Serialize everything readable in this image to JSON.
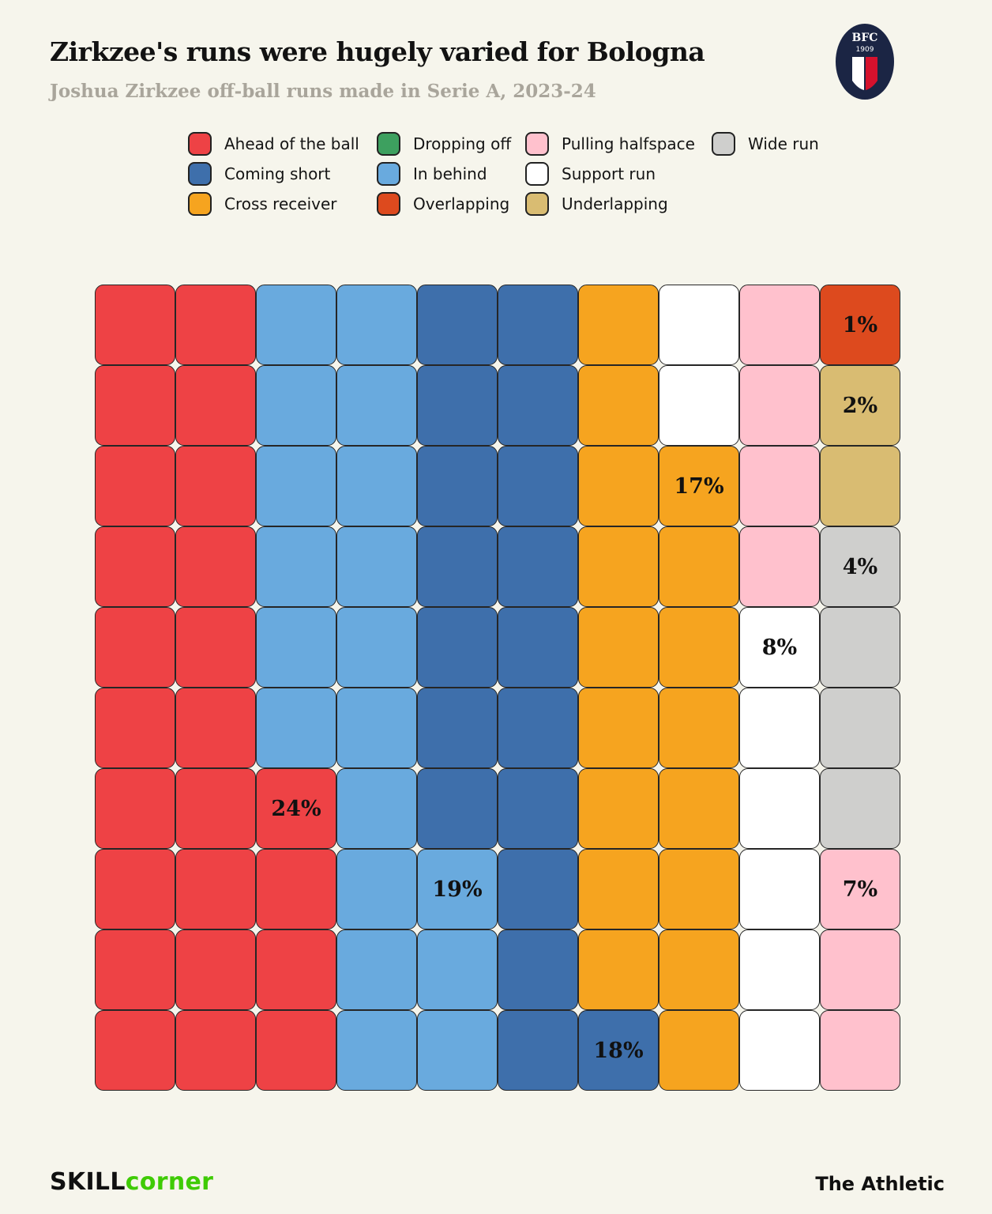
{
  "header": {
    "title": "Zirkzee's runs were hugely varied for Bologna",
    "subtitle": "Joshua Zirkzee off-ball runs made in Serie A, 2023-24"
  },
  "club_logo": {
    "abbr": "BFC",
    "year": "1909"
  },
  "legend": [
    {
      "key": "ahead",
      "label": "Ahead of the ball",
      "color": "#ee4245"
    },
    {
      "key": "coming_short",
      "label": "Coming short",
      "color": "#3e6fab"
    },
    {
      "key": "cross_receiver",
      "label": "Cross receiver",
      "color": "#f6a41f"
    },
    {
      "key": "dropping_off",
      "label": "Dropping off",
      "color": "#3da05f"
    },
    {
      "key": "in_behind",
      "label": "In behind",
      "color": "#69aade"
    },
    {
      "key": "overlapping",
      "label": "Overlapping",
      "color": "#dd4a1e"
    },
    {
      "key": "pulling_halfspace",
      "label": "Pulling halfspace",
      "color": "#ffc1cd"
    },
    {
      "key": "support_run",
      "label": "Support run",
      "color": "#ffffff"
    },
    {
      "key": "underlapping",
      "label": "Underlapping",
      "color": "#d9bc72"
    },
    {
      "key": "wide_run",
      "label": "Wide run",
      "color": "#cfcfcd"
    }
  ],
  "chart_data": {
    "type": "waffle",
    "title": "Zirkzee's runs were hugely varied for Bologna",
    "subtitle": "Joshua Zirkzee off-ball runs made in Serie A, 2023-24",
    "unit": "percent of off-ball runs",
    "grid_rows": 10,
    "grid_cols": 10,
    "values": [
      {
        "category": "Ahead of the ball",
        "percent": 24
      },
      {
        "category": "In behind",
        "percent": 19
      },
      {
        "category": "Coming short",
        "percent": 18
      },
      {
        "category": "Cross receiver",
        "percent": 17
      },
      {
        "category": "Support run",
        "percent": 8
      },
      {
        "category": "Pulling halfspace",
        "percent": 7
      },
      {
        "category": "Wide run",
        "percent": 4
      },
      {
        "category": "Underlapping",
        "percent": 2
      },
      {
        "category": "Overlapping",
        "percent": 1
      },
      {
        "category": "Dropping off",
        "percent": 0
      }
    ],
    "grid": [
      [
        "ahead",
        "ahead",
        "in_behind",
        "in_behind",
        "coming_short",
        "coming_short",
        "cross_receiver",
        "support_run",
        "pulling_halfspace",
        "overlapping"
      ],
      [
        "ahead",
        "ahead",
        "in_behind",
        "in_behind",
        "coming_short",
        "coming_short",
        "cross_receiver",
        "support_run",
        "pulling_halfspace",
        "underlapping"
      ],
      [
        "ahead",
        "ahead",
        "in_behind",
        "in_behind",
        "coming_short",
        "coming_short",
        "cross_receiver",
        "cross_receiver",
        "pulling_halfspace",
        "underlapping"
      ],
      [
        "ahead",
        "ahead",
        "in_behind",
        "in_behind",
        "coming_short",
        "coming_short",
        "cross_receiver",
        "cross_receiver",
        "pulling_halfspace",
        "wide_run"
      ],
      [
        "ahead",
        "ahead",
        "in_behind",
        "in_behind",
        "coming_short",
        "coming_short",
        "cross_receiver",
        "cross_receiver",
        "support_run",
        "wide_run"
      ],
      [
        "ahead",
        "ahead",
        "in_behind",
        "in_behind",
        "coming_short",
        "coming_short",
        "cross_receiver",
        "cross_receiver",
        "support_run",
        "wide_run"
      ],
      [
        "ahead",
        "ahead",
        "ahead",
        "in_behind",
        "coming_short",
        "coming_short",
        "cross_receiver",
        "cross_receiver",
        "support_run",
        "wide_run"
      ],
      [
        "ahead",
        "ahead",
        "ahead",
        "in_behind",
        "in_behind",
        "coming_short",
        "cross_receiver",
        "cross_receiver",
        "support_run",
        "pulling_halfspace"
      ],
      [
        "ahead",
        "ahead",
        "ahead",
        "in_behind",
        "in_behind",
        "coming_short",
        "cross_receiver",
        "cross_receiver",
        "support_run",
        "pulling_halfspace"
      ],
      [
        "ahead",
        "ahead",
        "ahead",
        "in_behind",
        "in_behind",
        "coming_short",
        "coming_short",
        "cross_receiver",
        "support_run",
        "pulling_halfspace"
      ]
    ],
    "cell_labels": [
      {
        "row": 0,
        "col": 9,
        "text": "1%"
      },
      {
        "row": 1,
        "col": 9,
        "text": "2%"
      },
      {
        "row": 2,
        "col": 7,
        "text": "17%"
      },
      {
        "row": 3,
        "col": 9,
        "text": "4%"
      },
      {
        "row": 4,
        "col": 8,
        "text": "8%"
      },
      {
        "row": 6,
        "col": 2,
        "text": "24%"
      },
      {
        "row": 7,
        "col": 4,
        "text": "19%"
      },
      {
        "row": 7,
        "col": 9,
        "text": "7%"
      },
      {
        "row": 9,
        "col": 6,
        "text": "18%"
      }
    ]
  },
  "footer": {
    "brand_left": "SKILL",
    "brand_right": "corner",
    "right": "The Athletic"
  }
}
